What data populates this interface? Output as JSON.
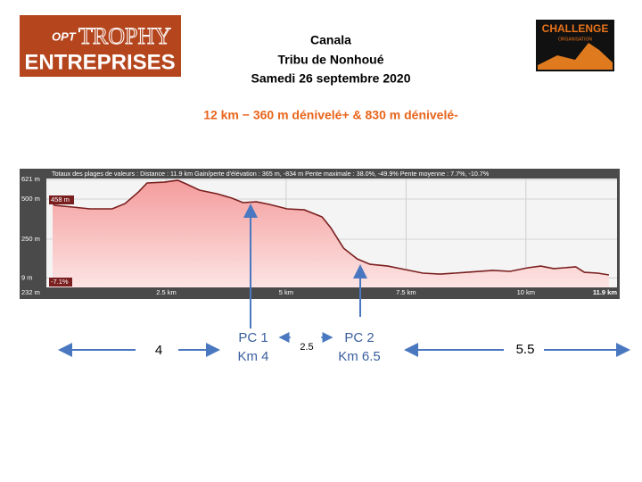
{
  "header": {
    "logo_left": {
      "small": "OPT",
      "main": "TROPHY",
      "bottom": "ENTREPRISES"
    },
    "logo_right": {
      "main": "CHALLENGE",
      "sub": "ORGANISATION"
    },
    "title_lines": [
      "Canala",
      "Tribu de Nonhoué",
      "Samedi 26 septembre 2020"
    ],
    "subtitle": "12 km − 360 m dénivelé+ & 830 m dénivelé-"
  },
  "chart_data": {
    "type": "area",
    "summary": "Totaux des plages de valeurs : Distance : 11.9 km    Gain/perte d'élévation : 365 m, -834 m    Pente maximale : 38.0%, -49.9%    Pente moyenne : 7.7%, -10.7%",
    "x": [
      0.13,
      0.18,
      0.55,
      0.91,
      1.37,
      1.64,
      1.92,
      2.1,
      2.46,
      2.74,
      2.92,
      3.19,
      3.56,
      3.87,
      4.1,
      4.38,
      4.65,
      5.02,
      5.38,
      5.75,
      5.93,
      6.2,
      6.48,
      6.75,
      7.12,
      7.48,
      7.85,
      8.21,
      8.76,
      9.31,
      9.67,
      10.04,
      10.31,
      10.58,
      11.04,
      11.22,
      11.5,
      11.73
    ],
    "values": [
      472,
      461,
      450,
      439,
      439,
      472,
      544,
      600,
      605,
      617,
      594,
      556,
      533,
      506,
      478,
      483,
      467,
      439,
      433,
      389,
      322,
      194,
      128,
      94,
      83,
      61,
      39,
      33,
      44,
      56,
      50,
      72,
      83,
      67,
      78,
      44,
      39,
      28
    ],
    "color": "#7a1f1f",
    "fill": "#f6a9a9",
    "xlim": [
      0,
      11.9
    ],
    "ylim": [
      -50,
      628
    ],
    "xticks": [
      {
        "value": 2.5,
        "label": "2.5 km"
      },
      {
        "value": 5,
        "label": "5 km"
      },
      {
        "value": 7.5,
        "label": "7.5 km"
      },
      {
        "value": 10,
        "label": "10 km"
      },
      {
        "value": 11.9,
        "label": "11.9 km"
      }
    ],
    "yticks": [
      {
        "value": 621,
        "label": "621 m"
      },
      {
        "value": 500,
        "label": "500 m"
      },
      {
        "value": 250,
        "label": "250 m"
      },
      {
        "value": 9,
        "label": "9 m"
      }
    ],
    "grid": true,
    "annotations": {
      "cursor_elevation": "458 m",
      "cursor_slope": "-7.1%",
      "start_elevation": "232 m"
    }
  },
  "below": {
    "leg1": "4",
    "pc1": [
      "PC 1",
      "Km 4"
    ],
    "leg2": "2.5",
    "pc2": [
      "PC 2",
      "Km 6.5"
    ],
    "leg3": "5.5"
  }
}
